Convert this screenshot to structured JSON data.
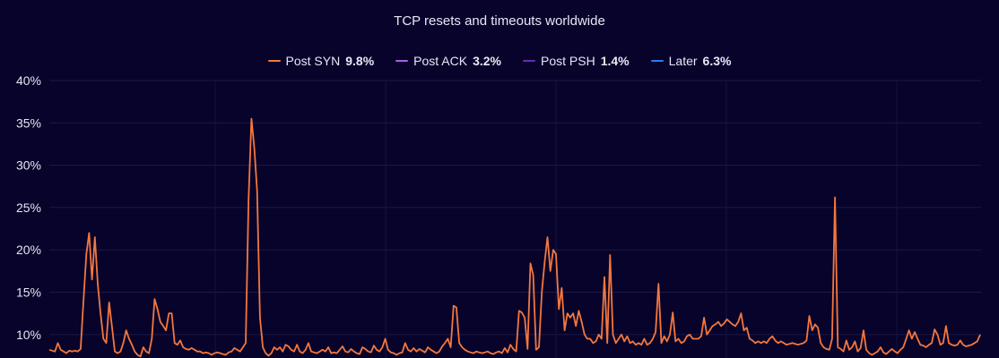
{
  "chart_data": {
    "type": "line",
    "title": "TCP resets and timeouts worldwide",
    "xlabel": "",
    "ylabel": "",
    "ylim": [
      7.5,
      40
    ],
    "yticks": [
      "40%",
      "35%",
      "30%",
      "25%",
      "20%",
      "15%",
      "10%"
    ],
    "ytick_values": [
      40,
      35,
      30,
      25,
      20,
      15,
      10
    ],
    "grid": true,
    "legend_position": "top-center",
    "legend": [
      {
        "name": "Post SYN",
        "value": "9.8%",
        "color": "#f4773d"
      },
      {
        "name": "Post ACK",
        "value": "3.2%",
        "color": "#b15ce6"
      },
      {
        "name": "Post PSH",
        "value": "1.4%",
        "color": "#6a2ab6"
      },
      {
        "name": "Later",
        "value": "6.3%",
        "color": "#2b7bf5"
      }
    ],
    "series": [
      {
        "name": "Post SYN",
        "color": "#f4773d",
        "values": [
          8.2,
          8.1,
          8.0,
          9.0,
          8.2,
          8.0,
          7.8,
          8.1,
          8.0,
          8.1,
          8.0,
          8.3,
          14.0,
          19.5,
          22.0,
          16.5,
          21.5,
          16.0,
          12.5,
          9.5,
          9.0,
          13.8,
          11.0,
          8.0,
          7.8,
          8.0,
          9.0,
          10.5,
          9.5,
          8.8,
          8.0,
          7.6,
          7.4,
          8.5,
          8.0,
          7.8,
          9.5,
          14.2,
          13.0,
          11.5,
          11.0,
          10.5,
          12.5,
          12.5,
          9.0,
          8.8,
          9.3,
          8.5,
          8.3,
          8.2,
          8.4,
          8.2,
          8.0,
          8.0,
          7.8,
          7.9,
          7.8,
          7.6,
          7.8,
          7.9,
          7.8,
          7.7,
          7.6,
          7.9,
          8.0,
          8.4,
          8.2,
          8.0,
          8.5,
          9.0,
          26.0,
          35.5,
          32.0,
          27.0,
          12.0,
          8.5,
          7.8,
          7.5,
          7.8,
          8.5,
          8.2,
          8.5,
          8.0,
          8.8,
          8.6,
          8.2,
          8.0,
          8.8,
          8.0,
          7.8,
          8.2,
          9.0,
          8.0,
          7.9,
          7.8,
          8.0,
          8.2,
          8.0,
          8.5,
          7.8,
          7.9,
          7.8,
          8.2,
          8.6,
          8.0,
          7.9,
          8.3,
          8.0,
          7.8,
          7.7,
          8.5,
          8.3,
          8.0,
          7.9,
          8.7,
          8.2,
          8.0,
          8.5,
          9.5,
          8.2,
          7.9,
          7.8,
          7.6,
          7.8,
          7.9,
          9.0,
          8.2,
          8.0,
          8.4,
          8.0,
          8.3,
          8.1,
          7.9,
          8.5,
          8.2,
          8.0,
          7.8,
          8.0,
          8.6,
          9.0,
          9.5,
          8.5,
          13.4,
          13.2,
          9.0,
          8.5,
          8.2,
          8.0,
          7.9,
          7.8,
          8.0,
          7.9,
          7.8,
          7.9,
          8.0,
          7.8,
          7.7,
          7.9,
          8.0,
          7.8,
          8.4,
          7.9,
          8.8,
          8.3,
          8.0,
          12.8,
          12.6,
          12.0,
          8.3,
          18.4,
          17.0,
          8.2,
          8.5,
          15.0,
          18.5,
          21.5,
          17.5,
          20.0,
          19.5,
          13.0,
          15.5,
          10.5,
          12.5,
          12.0,
          12.5,
          11.0,
          12.8,
          11.5,
          10.0,
          9.5,
          9.5,
          9.0,
          9.2,
          10.0,
          9.5,
          16.8,
          9.0,
          19.4,
          10.0,
          9.0,
          9.5,
          10.0,
          9.2,
          9.8,
          9.0,
          9.2,
          8.8,
          9.0,
          8.8,
          9.5,
          8.8,
          9.0,
          9.5,
          10.3,
          16.0,
          9.0,
          9.8,
          9.2,
          10.0,
          12.6,
          9.2,
          9.5,
          9.0,
          9.2,
          9.8,
          10.0,
          9.5,
          9.5,
          9.5,
          9.8,
          12.0,
          10.0,
          10.5,
          11.0,
          11.2,
          11.5,
          11.0,
          11.3,
          11.8,
          11.5,
          11.2,
          11.0,
          11.5,
          12.5,
          10.5,
          10.8,
          9.5,
          9.3,
          9.0,
          9.2,
          9.0,
          9.2,
          9.0,
          9.5,
          9.8,
          9.3,
          9.0,
          9.2,
          9.0,
          8.8,
          8.9,
          9.0,
          8.9,
          8.8,
          8.9,
          9.0,
          9.3,
          12.2,
          10.5,
          11.2,
          10.8,
          9.0,
          8.5,
          8.3,
          8.2,
          9.5,
          26.2,
          8.5,
          8.3,
          8.0,
          9.3,
          8.2,
          8.5,
          9.2,
          8.0,
          8.4,
          10.5,
          8.2,
          7.8,
          7.6,
          7.8,
          8.0,
          8.5,
          7.9,
          7.7,
          8.0,
          8.3,
          8.0,
          7.8,
          8.2,
          8.5,
          9.5,
          10.5,
          9.5,
          10.3,
          9.5,
          8.8,
          8.7,
          8.5,
          8.8,
          9.0,
          10.6,
          10.0,
          8.8,
          9.0,
          11.0,
          9.0,
          8.8,
          8.7,
          8.8,
          9.3,
          8.8,
          8.6,
          8.7,
          8.8,
          9.0,
          9.2,
          10.0
        ]
      }
    ]
  }
}
